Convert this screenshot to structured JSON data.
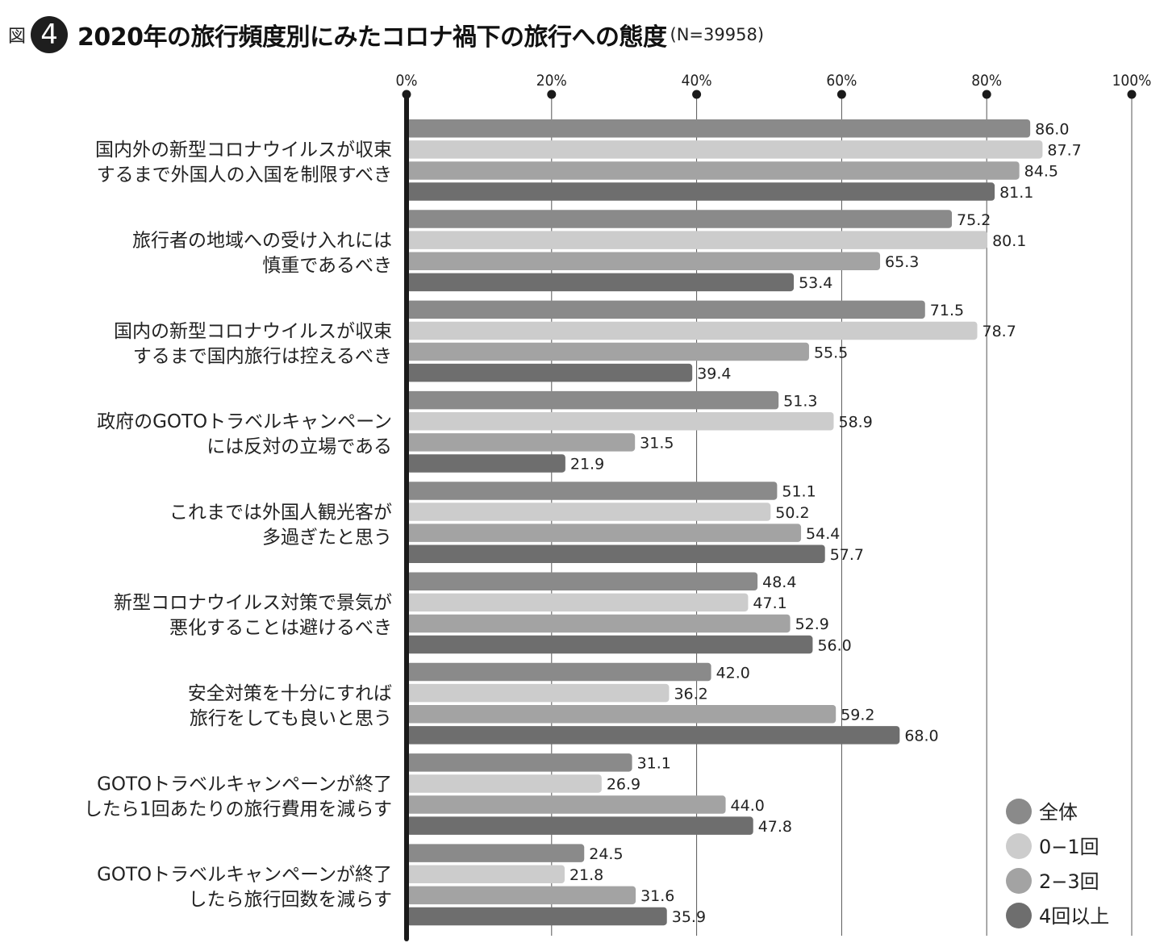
{
  "header": {
    "prefix": "図",
    "number": "4",
    "title": "2020年の旅行頻度別にみたコロナ禍下の旅行への態度",
    "n": "(N=39958)"
  },
  "chart_data": {
    "type": "bar",
    "orientation": "horizontal",
    "xlim": [
      0,
      100
    ],
    "x_ticks": [
      "0%",
      "20%",
      "40%",
      "60%",
      "80%",
      "100%"
    ],
    "grid": true,
    "legend_position": "bottom-right",
    "categories": [
      [
        "国内外の新型コロナウイルスが収束",
        "するまで外国人の入国を制限すべき"
      ],
      [
        "旅行者の地域への受け入れには",
        "慎重であるべき"
      ],
      [
        "国内の新型コロナウイルスが収束",
        "するまで国内旅行は控えるべき"
      ],
      [
        "政府のGOTOトラベルキャンペーン",
        "には反対の立場である"
      ],
      [
        "これまでは外国人観光客が",
        "多過ぎたと思う"
      ],
      [
        "新型コロナウイルス対策で景気が",
        "悪化することは避けるべき"
      ],
      [
        "安全対策を十分にすれば",
        "旅行をしても良いと思う"
      ],
      [
        "GOTOトラベルキャンペーンが終了",
        "したら1回あたりの旅行費用を減らす"
      ],
      [
        "GOTOトラベルキャンペーンが終了",
        "したら旅行回数を減らす"
      ]
    ],
    "series": [
      {
        "name": "全体",
        "color": "#8a8a8a",
        "values": [
          86.0,
          75.2,
          71.5,
          51.3,
          51.1,
          48.4,
          42.0,
          31.1,
          24.5
        ],
        "labels": [
          "86.0",
          "75.2",
          "71.5",
          "51.3",
          "51.1",
          "48.4",
          "42.0",
          "31.1",
          "24.5"
        ]
      },
      {
        "name": "0−1回",
        "color": "#cccccc",
        "values": [
          87.7,
          80.1,
          78.7,
          58.9,
          50.2,
          47.1,
          36.2,
          26.9,
          21.8
        ],
        "labels": [
          "87.7",
          "80.1",
          "78.7",
          "58.9",
          "50.2",
          "47.1",
          "36.2",
          "26.9",
          "21.8"
        ]
      },
      {
        "name": "2−3回",
        "color": "#a3a3a3",
        "values": [
          84.5,
          65.3,
          55.5,
          31.5,
          54.4,
          52.9,
          59.2,
          44.0,
          31.6
        ],
        "labels": [
          "84.5",
          "65.3",
          "55.5",
          "31.5",
          "54.4",
          "52.9",
          "59.2",
          "44.0",
          "31.6"
        ]
      },
      {
        "name": "4回以上",
        "color": "#6e6e6e",
        "values": [
          81.1,
          53.4,
          39.4,
          21.9,
          57.7,
          56.0,
          68.0,
          47.8,
          35.9
        ],
        "labels": [
          "81.1",
          "53.4",
          "39.4",
          "21.9",
          "57.7",
          "56.0",
          "68.0",
          "47.8",
          "35.9"
        ]
      }
    ]
  }
}
